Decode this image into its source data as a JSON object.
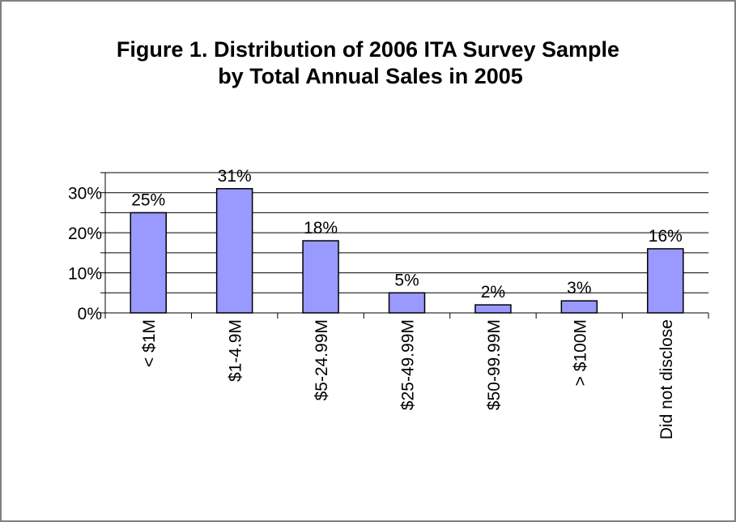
{
  "chart_data": {
    "type": "bar",
    "title_line1": "Figure 1.  Distribution of 2006 ITA Survey Sample",
    "title_line2": "by Total Annual Sales in 2005",
    "xlabel": "",
    "ylabel": "",
    "categories": [
      "< $1M",
      "$1-4.9M",
      "$5-24.99M",
      "$25-49.99M",
      "$50-99.99M",
      "> $100M",
      "Did not disclose"
    ],
    "values": [
      25,
      31,
      18,
      5,
      2,
      3,
      16
    ],
    "data_labels": [
      "25%",
      "31%",
      "18%",
      "5%",
      "2%",
      "3%",
      "16%"
    ],
    "y_ticks": [
      0,
      10,
      20,
      30
    ],
    "y_tick_labels": [
      "0%",
      "10%",
      "20%",
      "30%"
    ],
    "ylim": [
      0,
      35
    ],
    "minor_gridline_step": 5,
    "grid": true,
    "legend": "none",
    "colors": {
      "bar_fill": "#9999FF",
      "bar_stroke": "#000000",
      "gridline": "#000000",
      "frame": "#808080"
    }
  }
}
